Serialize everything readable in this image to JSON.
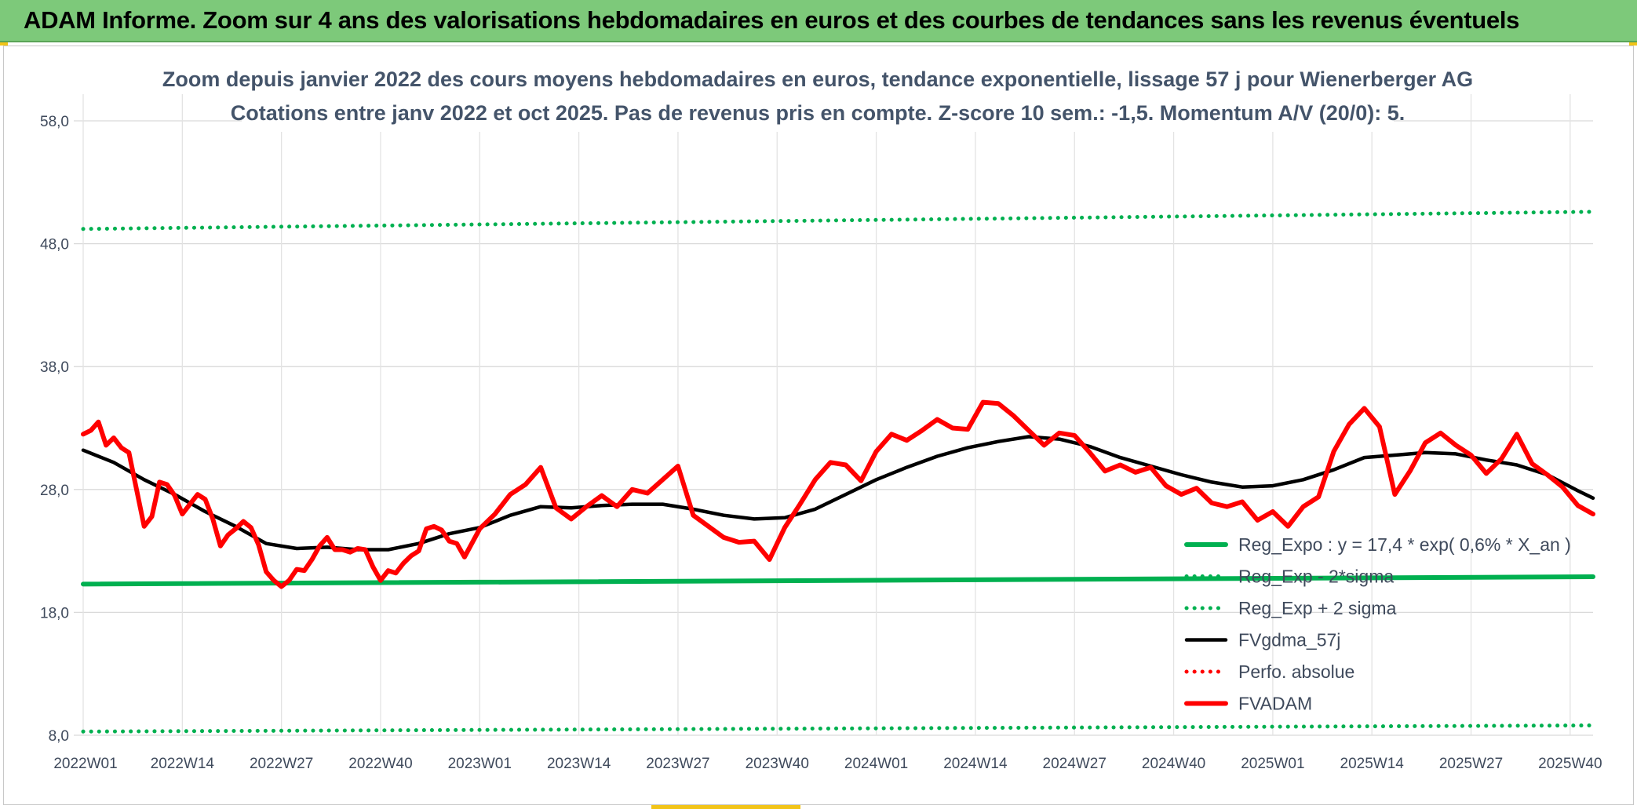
{
  "banner": {
    "title": "ADAM Informe. Zoom sur 4 ans des valorisations hebdomadaires en euros et des courbes de tendances sans les revenus éventuels"
  },
  "colors": {
    "banner_bg": "#7dc97a",
    "trend_green": "#00b050",
    "average_black": "#000000",
    "price_red": "#ff0000",
    "axis_text": "#3f4a5c",
    "title_text": "#44546a",
    "grid": "#d9d9d9"
  },
  "chart_data": {
    "type": "line",
    "title": "Zoom depuis janvier 2022 des cours moyens hebdomadaires en euros, tendance exponentielle, lissage 57 j pour Wienerberger AG",
    "subtitle": "Cotations entre janv 2022 et oct 2025. Pas de revenus pris en compte. Z-score 10 sem.: -1,5. Momentum A/V (20/0): 5.",
    "xlabel": "",
    "ylabel": "",
    "ylim": [
      8,
      58
    ],
    "yticks": [
      "58,0",
      "48,0",
      "38,0",
      "28,0",
      "18,0",
      "8,0"
    ],
    "ytick_values": [
      58,
      48,
      38,
      28,
      18,
      8
    ],
    "xlim": [
      0,
      198
    ],
    "xticks": [
      "2022W01",
      "2022W14",
      "2022W27",
      "2022W40",
      "2023W01",
      "2023W14",
      "2023W27",
      "2023W40",
      "2024W01",
      "2024W14",
      "2024W27",
      "2024W40",
      "2025W01",
      "2025W14",
      "2025W27",
      "2025W40"
    ],
    "xtick_positions": [
      0,
      13,
      26,
      39,
      52,
      65,
      78,
      91,
      104,
      117,
      130,
      143,
      156,
      169,
      182,
      195
    ],
    "grid": true,
    "legend_position": "bottom-right",
    "series": [
      {
        "name": "Reg_Expo : y = 17,4 * exp( 0,6% *  X_an )",
        "style": "solid-thick",
        "color": "#00b050",
        "x": [
          0,
          198
        ],
        "values": [
          20.3,
          20.9
        ]
      },
      {
        "name": "Reg_Exp - 2*sigma",
        "style": "dotted",
        "color": "#00b050",
        "x": [
          0,
          198
        ],
        "values": [
          8.3,
          8.8
        ]
      },
      {
        "name": "Reg_Exp + 2 sigma",
        "style": "dotted",
        "color": "#00b050",
        "x": [
          0,
          198
        ],
        "values": [
          49.2,
          50.6
        ]
      },
      {
        "name": "FVgdma_57j",
        "style": "solid",
        "color": "#000000",
        "x": [
          0,
          4,
          8,
          12,
          16,
          20,
          24,
          28,
          32,
          36,
          40,
          44,
          48,
          52,
          56,
          60,
          64,
          68,
          72,
          76,
          80,
          84,
          88,
          92,
          96,
          100,
          104,
          108,
          112,
          116,
          120,
          124,
          128,
          132,
          136,
          140,
          144,
          148,
          152,
          156,
          160,
          164,
          168,
          172,
          176,
          180,
          184,
          188,
          192,
          196,
          198
        ],
        "values": [
          31.2,
          30.2,
          28.8,
          27.6,
          26.2,
          25.0,
          23.6,
          23.2,
          23.3,
          23.1,
          23.1,
          23.6,
          24.4,
          24.9,
          25.9,
          26.6,
          26.5,
          26.7,
          26.8,
          26.8,
          26.4,
          25.9,
          25.6,
          25.7,
          26.4,
          27.6,
          28.8,
          29.8,
          30.7,
          31.4,
          31.9,
          32.3,
          32.1,
          31.5,
          30.6,
          29.9,
          29.2,
          28.6,
          28.2,
          28.3,
          28.8,
          29.6,
          30.6,
          30.8,
          31.0,
          30.9,
          30.4,
          30.0,
          29.2,
          27.9,
          27.3
        ]
      },
      {
        "name": "Perfo. absolue",
        "style": "dotted",
        "color": "#ff0000",
        "x": [],
        "values": []
      },
      {
        "name": "FVADAM",
        "style": "solid-thick",
        "color": "#ff0000",
        "x": [
          0,
          1,
          2,
          3,
          4,
          5,
          6,
          7,
          8,
          9,
          10,
          11,
          12,
          13,
          14,
          15,
          16,
          17,
          18,
          19,
          20,
          21,
          22,
          23,
          24,
          25,
          26,
          27,
          28,
          29,
          30,
          31,
          32,
          33,
          34,
          35,
          36,
          37,
          38,
          39,
          40,
          41,
          42,
          43,
          44,
          45,
          46,
          47,
          48,
          49,
          50,
          52,
          54,
          56,
          58,
          60,
          62,
          64,
          66,
          68,
          70,
          72,
          74,
          76,
          78,
          80,
          82,
          84,
          86,
          88,
          90,
          92,
          94,
          96,
          98,
          100,
          102,
          104,
          106,
          108,
          110,
          112,
          114,
          116,
          118,
          120,
          122,
          124,
          126,
          128,
          130,
          132,
          134,
          136,
          138,
          140,
          142,
          144,
          146,
          148,
          150,
          152,
          154,
          156,
          158,
          160,
          162,
          164,
          166,
          168,
          170,
          172,
          174,
          176,
          178,
          180,
          182,
          184,
          186,
          188,
          190,
          192,
          194,
          196,
          198
        ],
        "values": [
          32.5,
          32.8,
          33.5,
          31.6,
          32.2,
          31.4,
          31.0,
          28.0,
          25.0,
          25.8,
          28.6,
          28.4,
          27.5,
          26.0,
          26.8,
          27.6,
          27.2,
          25.6,
          23.4,
          24.3,
          24.8,
          25.4,
          24.9,
          23.5,
          21.3,
          20.6,
          20.1,
          20.6,
          21.5,
          21.4,
          22.3,
          23.4,
          24.1,
          23.1,
          23.1,
          22.9,
          23.2,
          23.1,
          21.7,
          20.6,
          21.4,
          21.2,
          22.0,
          22.6,
          23.0,
          24.8,
          25.0,
          24.7,
          23.8,
          23.6,
          22.5,
          24.8,
          26.0,
          27.6,
          28.4,
          29.8,
          26.5,
          25.6,
          26.6,
          27.5,
          26.6,
          28.0,
          27.7,
          28.8,
          29.9,
          25.9,
          25.0,
          24.1,
          23.7,
          23.8,
          22.3,
          24.9,
          26.8,
          28.8,
          30.2,
          30.0,
          28.7,
          31.1,
          32.5,
          32.0,
          32.8,
          33.7,
          33.0,
          32.9,
          35.1,
          35.0,
          34.0,
          32.8,
          31.6,
          32.6,
          32.4,
          31.0,
          29.5,
          30.0,
          29.4,
          29.8,
          28.3,
          27.6,
          28.1,
          26.9,
          26.6,
          27.0,
          25.5,
          26.2,
          25.0,
          26.6,
          27.4,
          31.1,
          33.3,
          34.6,
          33.1,
          27.6,
          29.5,
          31.8,
          32.6,
          31.6,
          30.8,
          29.3,
          30.5,
          32.5,
          30.1,
          29.2,
          28.2,
          26.7,
          26.0
        ]
      }
    ]
  }
}
